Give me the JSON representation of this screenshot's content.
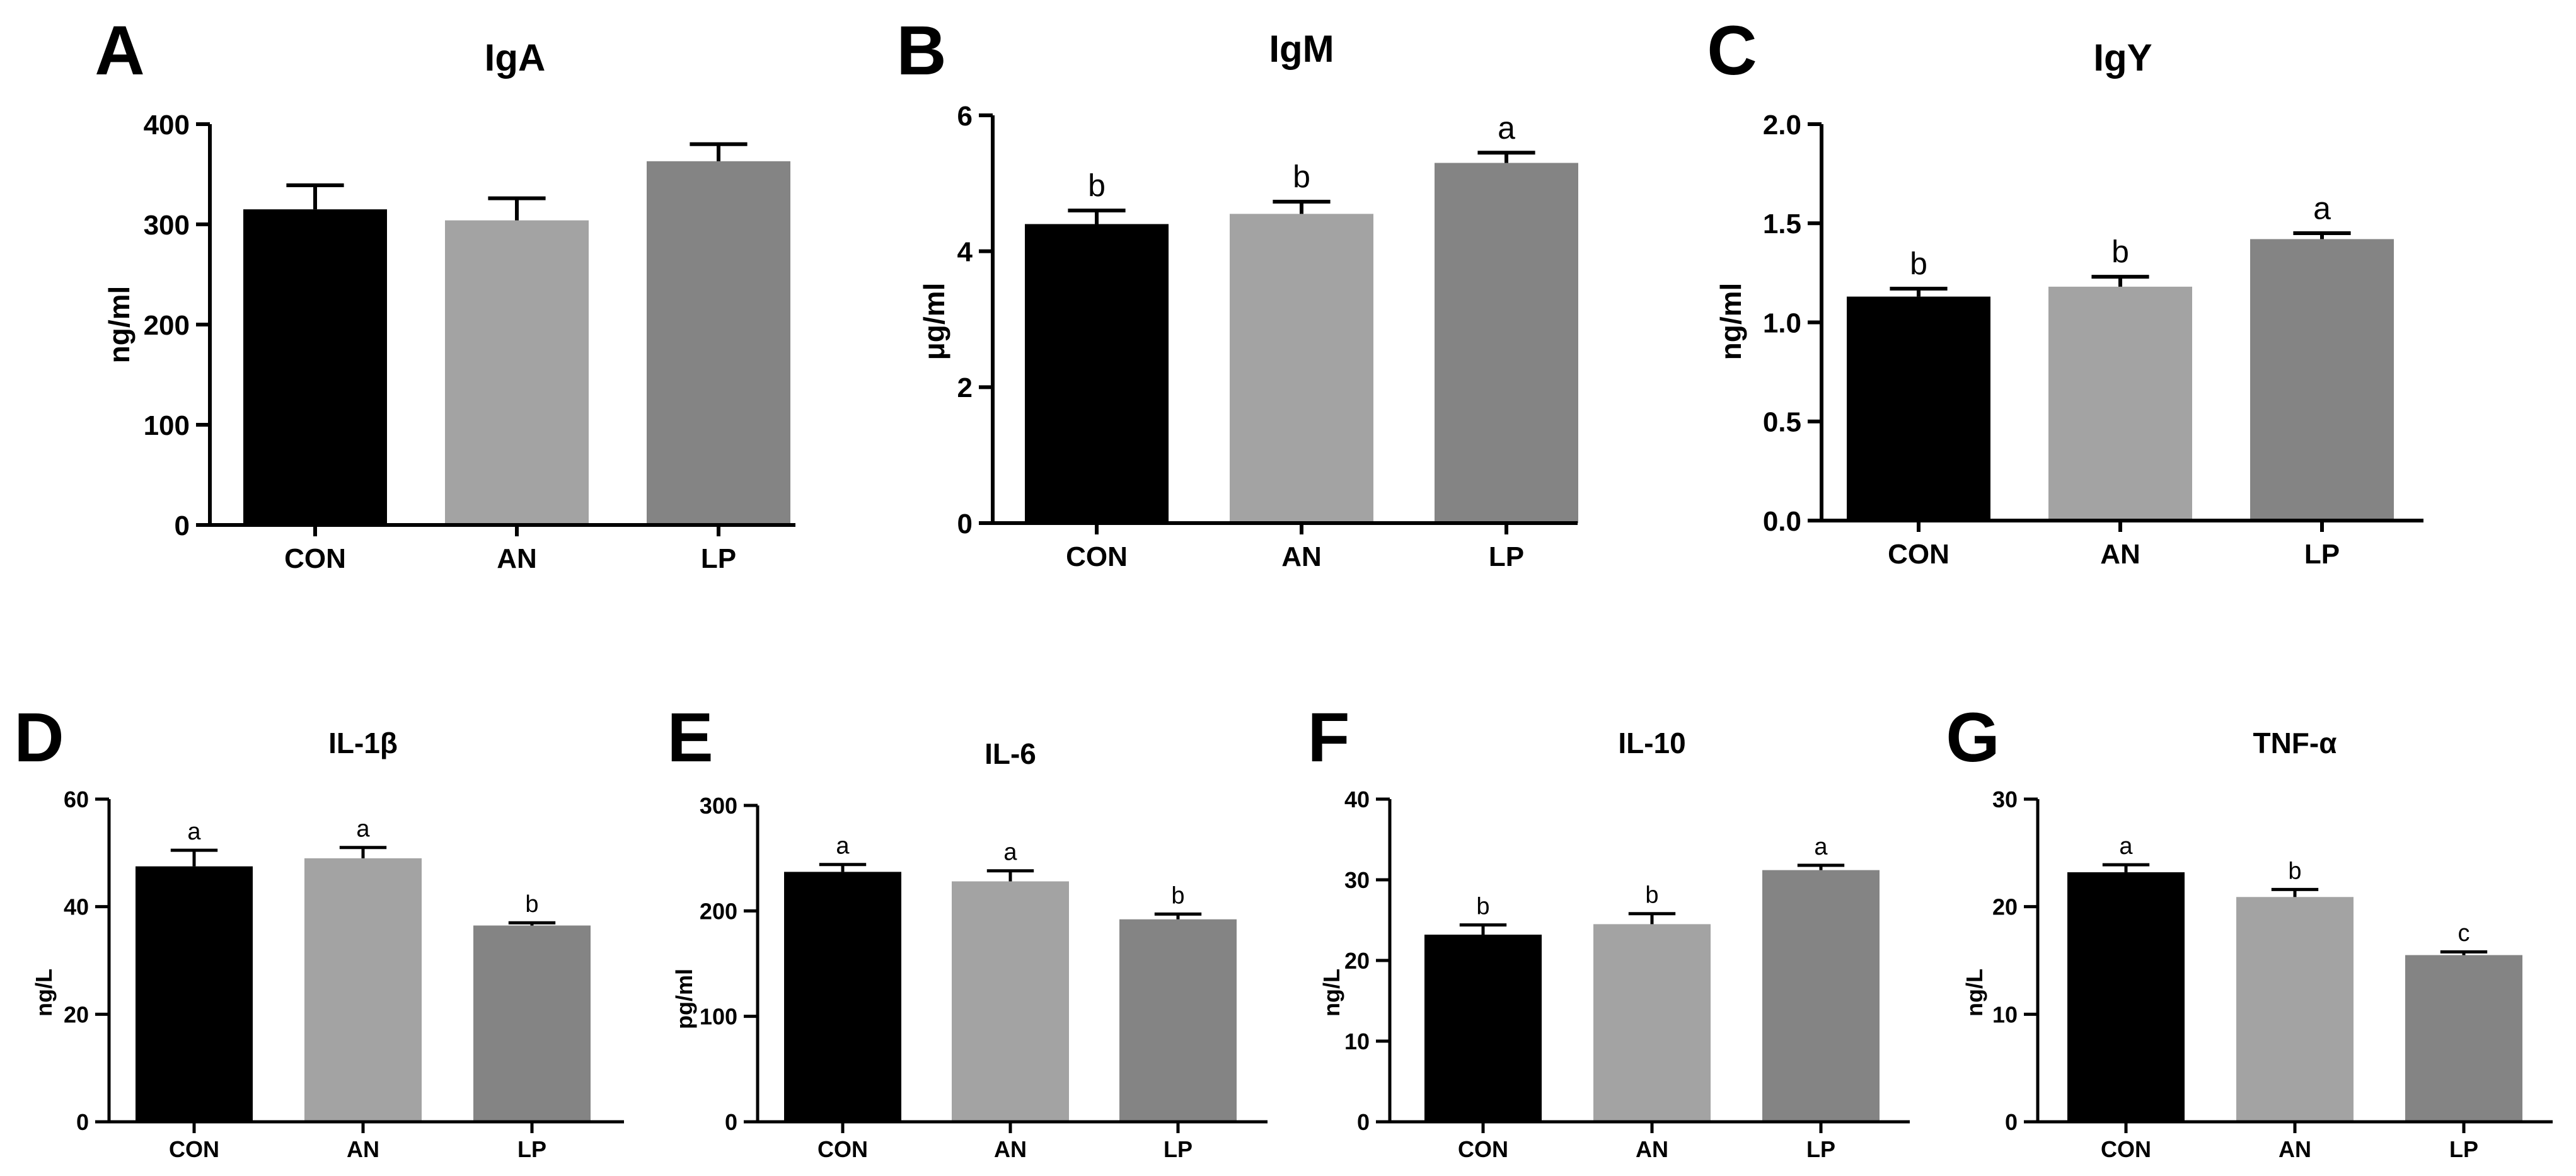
{
  "colors": {
    "CON": "#000000",
    "AN": "#a3a3a3",
    "LP": "#848484",
    "axis": "#000000"
  },
  "chart_data": [
    {
      "id": "A",
      "type": "bar",
      "title": "IgA",
      "ylabel": "ng/ml",
      "categories": [
        "CON",
        "AN",
        "LP"
      ],
      "values": [
        315,
        304,
        363
      ],
      "errors": [
        24,
        22,
        17
      ],
      "sig": [
        "",
        "",
        ""
      ],
      "ylim": [
        0,
        400
      ],
      "yticks": [
        0,
        100,
        200,
        300,
        400
      ],
      "tick_labels": [
        "0",
        "100",
        "200",
        "300",
        "400"
      ]
    },
    {
      "id": "B",
      "type": "bar",
      "title": "IgM",
      "ylabel": "μg/ml",
      "categories": [
        "CON",
        "AN",
        "LP"
      ],
      "values": [
        4.4,
        4.55,
        5.3
      ],
      "errors": [
        0.2,
        0.18,
        0.15
      ],
      "sig": [
        "b",
        "b",
        "a"
      ],
      "ylim": [
        0,
        6
      ],
      "yticks": [
        0,
        2,
        4,
        6
      ],
      "tick_labels": [
        "0",
        "2",
        "4",
        "6"
      ]
    },
    {
      "id": "C",
      "type": "bar",
      "title": "IgY",
      "ylabel": "ng/ml",
      "categories": [
        "CON",
        "AN",
        "LP"
      ],
      "values": [
        1.13,
        1.18,
        1.42
      ],
      "errors": [
        0.04,
        0.05,
        0.03
      ],
      "sig": [
        "b",
        "b",
        "a"
      ],
      "ylim": [
        0,
        2.0
      ],
      "yticks": [
        0,
        0.5,
        1.0,
        1.5,
        2.0
      ],
      "tick_labels": [
        "0.0",
        "0.5",
        "1.0",
        "1.5",
        "2.0"
      ]
    },
    {
      "id": "D",
      "type": "bar",
      "title": "IL-1β",
      "ylabel": "ng/L",
      "categories": [
        "CON",
        "AN",
        "LP"
      ],
      "values": [
        47.5,
        49,
        36.5
      ],
      "errors": [
        3,
        2,
        0.5
      ],
      "sig": [
        "a",
        "a",
        "b"
      ],
      "ylim": [
        0,
        60
      ],
      "yticks": [
        0,
        20,
        40,
        60
      ],
      "tick_labels": [
        "0",
        "20",
        "40",
        "60"
      ]
    },
    {
      "id": "E",
      "type": "bar",
      "title": "IL-6",
      "ylabel": "pg/ml",
      "categories": [
        "CON",
        "AN",
        "LP"
      ],
      "values": [
        237,
        228,
        192
      ],
      "errors": [
        7,
        10,
        5
      ],
      "sig": [
        "a",
        "a",
        "b"
      ],
      "ylim": [
        0,
        300
      ],
      "yticks": [
        0,
        100,
        200,
        300
      ],
      "tick_labels": [
        "0",
        "100",
        "200",
        "300"
      ]
    },
    {
      "id": "F",
      "type": "bar",
      "title": "IL-10",
      "ylabel": "ng/L",
      "categories": [
        "CON",
        "AN",
        "LP"
      ],
      "values": [
        23.2,
        24.5,
        31.2
      ],
      "errors": [
        1.2,
        1.3,
        0.6
      ],
      "sig": [
        "b",
        "b",
        "a"
      ],
      "ylim": [
        0,
        40
      ],
      "yticks": [
        0,
        10,
        20,
        30,
        40
      ],
      "tick_labels": [
        "0",
        "10",
        "20",
        "30",
        "40"
      ]
    },
    {
      "id": "G",
      "type": "bar",
      "title": "TNF-α",
      "ylabel": "ng/L",
      "categories": [
        "CON",
        "AN",
        "LP"
      ],
      "values": [
        23.2,
        20.9,
        15.5
      ],
      "errors": [
        0.7,
        0.7,
        0.3
      ],
      "sig": [
        "a",
        "b",
        "c"
      ],
      "ylim": [
        0,
        30
      ],
      "yticks": [
        0,
        10,
        20,
        30
      ],
      "tick_labels": [
        "0",
        "10",
        "20",
        "30"
      ]
    }
  ]
}
